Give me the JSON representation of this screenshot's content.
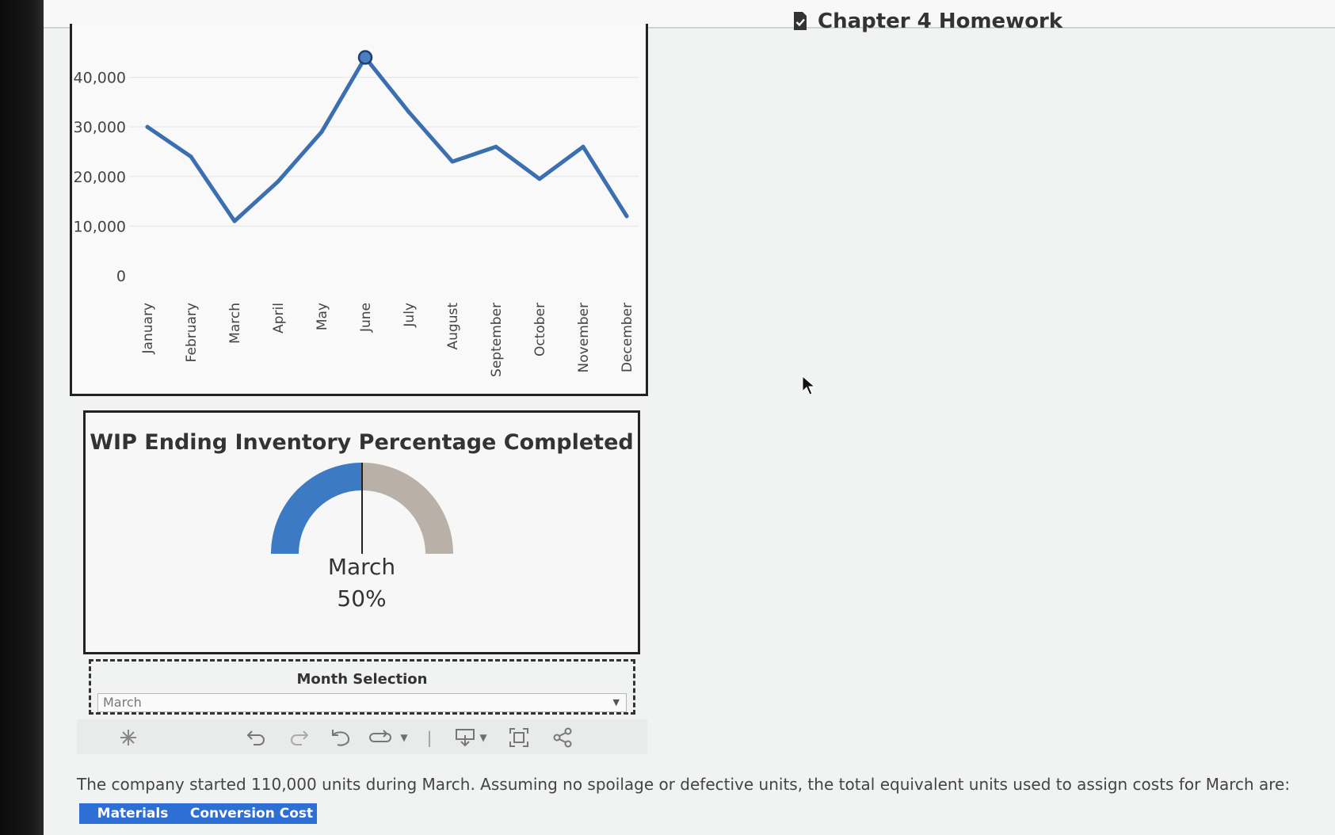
{
  "header": {
    "title": "Chapter 4 Homework",
    "icon": "document-check-icon"
  },
  "chart_data": {
    "type": "line",
    "categories": [
      "January",
      "February",
      "March",
      "April",
      "May",
      "June",
      "July",
      "August",
      "September",
      "October",
      "November",
      "December"
    ],
    "values": [
      30000,
      24000,
      11000,
      19000,
      29000,
      44000,
      33000,
      23000,
      26000,
      19500,
      26000,
      12000
    ],
    "y_ticks": [
      "40,000",
      "30,000",
      "20,000",
      "10,000",
      "0"
    ],
    "ylim": [
      0,
      46000
    ],
    "highlighted_category": "June",
    "line_color": "#3c6fb0",
    "grid": true
  },
  "gauge": {
    "title": "WIP Ending Inventory Percentage Completed",
    "month": "March",
    "percent_label": "50%",
    "percent": 0.5,
    "filled_color": "#3c7bc4",
    "empty_color": "#b9b0a7"
  },
  "month_selection": {
    "label": "Month Selection",
    "selected": "March"
  },
  "toolbar": {
    "icons": [
      "revert-icon",
      "undo-icon",
      "redo-icon",
      "reset-icon",
      "refresh-icon",
      "download-icon",
      "fullscreen-icon",
      "share-icon"
    ]
  },
  "question": {
    "text": "The company started 110,000 units during March. Assuming no spoilage or defective units, the total equivalent units used to assign costs for March are:"
  },
  "answer_table": {
    "headers": [
      "Materials",
      "Conversion Cost"
    ]
  }
}
